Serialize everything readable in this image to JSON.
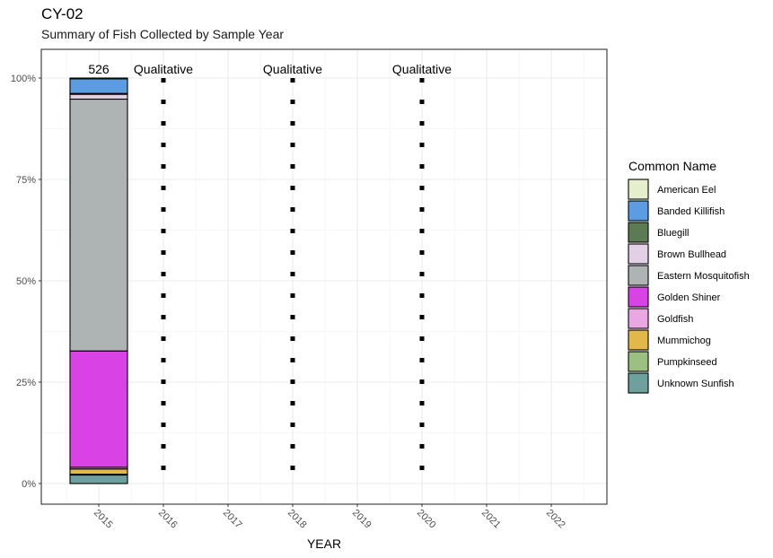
{
  "chart_data": {
    "type": "bar",
    "stacked": true,
    "title": "CY-02",
    "subtitle": "Summary of Fish Collected by Sample Year",
    "xlabel": "YEAR",
    "ylabel": "",
    "x_ticks": [
      "2015",
      "2016",
      "2017",
      "2018",
      "2019",
      "2020",
      "2021",
      "2022"
    ],
    "y_ticks": [
      "0%",
      "25%",
      "50%",
      "75%",
      "100%"
    ],
    "y_tick_values": [
      0,
      0.25,
      0.5,
      0.75,
      1.0
    ],
    "ylim": [
      0,
      1
    ],
    "grid": true,
    "legend_title": "Common Name",
    "legend_position": "right",
    "series": [
      {
        "name": "American Eel",
        "color": "#e5efcc"
      },
      {
        "name": "Banded Killifish",
        "color": "#5b9de0"
      },
      {
        "name": "Bluegill",
        "color": "#5c7a54"
      },
      {
        "name": "Brown Bullhead",
        "color": "#e3cfe6"
      },
      {
        "name": "Eastern Mosquitofish",
        "color": "#aeb4b4"
      },
      {
        "name": "Golden Shiner",
        "color": "#d943e6"
      },
      {
        "name": "Goldfish",
        "color": "#e9a8e3"
      },
      {
        "name": "Mummichog",
        "color": "#e3b84a"
      },
      {
        "name": "Pumpkinseed",
        "color": "#9cbf82"
      },
      {
        "name": "Unknown Sunfish",
        "color": "#6ea19e"
      }
    ],
    "bars": [
      {
        "year": "2015",
        "total_label": "526",
        "stack_bottom_to_top": [
          {
            "name": "Unknown Sunfish",
            "value": 0.021
          },
          {
            "name": "Pumpkinseed",
            "value": 0.002
          },
          {
            "name": "Mummichog",
            "value": 0.013
          },
          {
            "name": "Goldfish",
            "value": 0.004
          },
          {
            "name": "Golden Shiner",
            "value": 0.287
          },
          {
            "name": "Eastern Mosquitofish",
            "value": 0.621
          },
          {
            "name": "Brown Bullhead",
            "value": 0.012
          },
          {
            "name": "Bluegill",
            "value": 0.002
          },
          {
            "name": "Banded Killifish",
            "value": 0.036
          },
          {
            "name": "American Eel",
            "value": 0.002
          }
        ]
      }
    ],
    "qualitative": [
      {
        "year": "2016",
        "label": "Qualitative"
      },
      {
        "year": "2018",
        "label": "Qualitative"
      },
      {
        "year": "2020",
        "label": "Qualitative"
      }
    ]
  }
}
